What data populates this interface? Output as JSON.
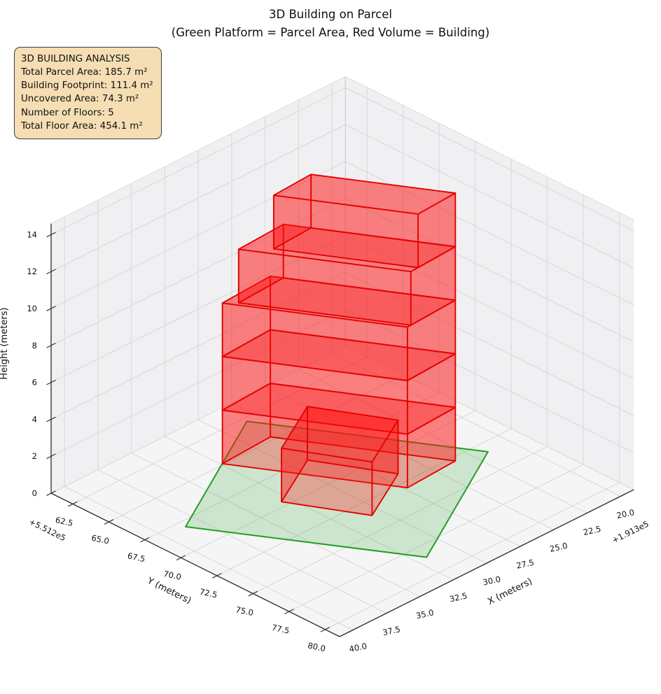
{
  "title": {
    "line1": "3D Building on Parcel",
    "line2": "(Green Platform = Parcel Area, Red Volume = Building)"
  },
  "info_box": {
    "lines": [
      "3D BUILDING ANALYSIS",
      "Total Parcel Area: 185.7 m²",
      "Building Footprint: 111.4 m²",
      "Uncovered Area: 74.3 m²",
      "Number of Floors: 5",
      "Total Floor Area: 454.1 m²"
    ],
    "bg_color": "#f5deb3",
    "border_color": "#3d3d3d"
  },
  "chart_data": {
    "type": "3d-building-plot",
    "title": "3D Building on Parcel",
    "subtitle": "(Green Platform = Parcel Area, Red Volume = Building)",
    "analysis": {
      "total_parcel_area_m2": 185.7,
      "building_footprint_m2": 111.4,
      "uncovered_area_m2": 74.3,
      "number_of_floors": 5,
      "total_floor_area_m2": 454.1
    },
    "axes": {
      "x": {
        "label": "X (meters)",
        "offset_text": "+1.913e5",
        "ticks": [
          20.0,
          22.5,
          25.0,
          27.5,
          30.0,
          32.5,
          35.0,
          37.5,
          40.0
        ],
        "range": [
          19,
          41
        ]
      },
      "y": {
        "label": "Y (meters)",
        "offset_text": "+5.512e5",
        "ticks": [
          62.5,
          65.0,
          67.5,
          70.0,
          72.5,
          75.0,
          77.5,
          80.0
        ],
        "range": [
          61,
          81
        ]
      },
      "z": {
        "label": "Height (meters)",
        "ticks": [
          0,
          2,
          4,
          6,
          8,
          10,
          12,
          14
        ],
        "range": [
          0,
          14.6
        ]
      }
    },
    "projection": {
      "origin3d": [
        41,
        81,
        0
      ],
      "origin2d": [
        485,
        910
      ],
      "ex": [
        -19.1,
        9.55
      ],
      "ey": [
        20.6,
        10.25
      ],
      "ez": [
        0,
        -26.4
      ]
    },
    "parcel": {
      "corners": [
        [
          38.5,
          68.0
        ],
        [
          31.8,
          78.5
        ],
        [
          21.6,
          73.3
        ],
        [
          28.3,
          62.8
        ]
      ],
      "z": 0
    },
    "building": {
      "floor_height_m": 2.9,
      "floors": [
        {
          "corners": [
            [
              32.4,
              64.9
            ],
            [
              27.3,
              73.0
            ],
            [
              23.5,
              72.8
            ],
            [
              28.6,
              64.7
            ]
          ],
          "z0": 0.0,
          "z1": 2.9
        },
        {
          "corners": [
            [
              32.4,
              64.9
            ],
            [
              27.3,
              73.0
            ],
            [
              23.5,
              72.8
            ],
            [
              28.6,
              64.7
            ]
          ],
          "z0": 2.9,
          "z1": 5.8
        },
        {
          "corners": [
            [
              32.4,
              64.9
            ],
            [
              27.3,
              73.0
            ],
            [
              23.5,
              72.8
            ],
            [
              28.6,
              64.7
            ]
          ],
          "z0": 5.8,
          "z1": 8.7
        },
        {
          "corners": [
            [
              31.78,
              65.45
            ],
            [
              27.03,
              72.99
            ],
            [
              23.5,
              72.8
            ],
            [
              28.24,
              65.27
            ]
          ],
          "z0": 8.7,
          "z1": 11.6
        },
        {
          "corners": [
            [
              30.44,
              66.64
            ],
            [
              26.46,
              72.96
            ],
            [
              23.5,
              72.8
            ],
            [
              27.48,
              66.48
            ]
          ],
          "z0": 11.6,
          "z1": 14.5
        }
      ],
      "annex": {
        "corners": [
          [
            33.05,
            69.6
          ],
          [
            30.7,
            73.7
          ],
          [
            26.6,
            71.7
          ],
          [
            28.95,
            67.6
          ]
        ],
        "z0": 0.0,
        "z1": 2.9
      }
    },
    "style": {
      "pane_wall": "#f0f0f2",
      "pane_floor": "#f5f5f6",
      "grid": "#d7d7d9",
      "axis_line": "#2a2a2a",
      "building_fill": "rgba(255,15,15,0.30)",
      "building_edge": "#e60000",
      "parcel_fill": "rgba(0,150,0,0.16)",
      "parcel_edge": "#22a022"
    }
  }
}
